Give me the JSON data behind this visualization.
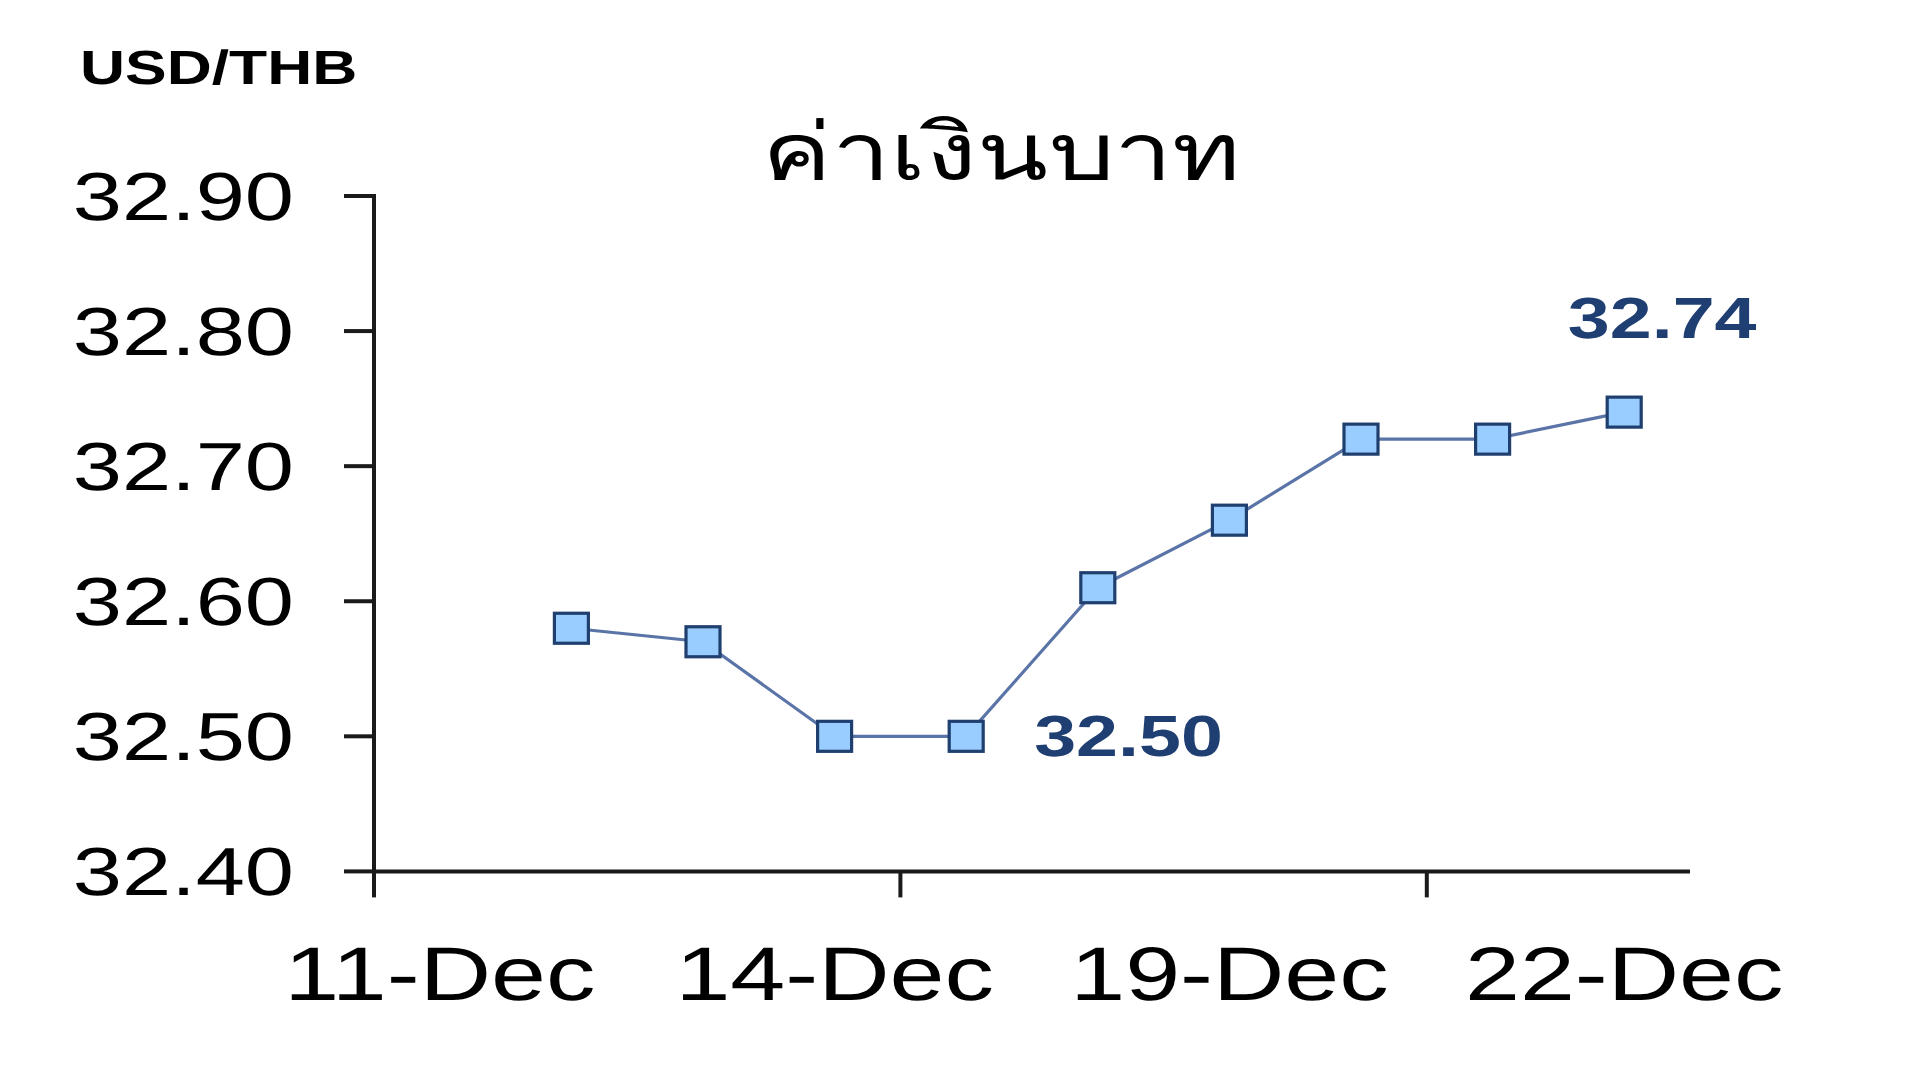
{
  "chart_data": {
    "type": "line",
    "title": "ค่าเงินบาท",
    "ylabel": "USD/THB",
    "categories": [
      "11-Dec",
      null,
      null,
      "14-Dec",
      null,
      null,
      "19-Dec",
      null,
      null,
      "22-Dec"
    ],
    "series": [
      {
        "color": "#5a74a8",
        "values": [
          null,
          32.58,
          32.57,
          32.5,
          32.5,
          32.61,
          32.66,
          32.72,
          32.72,
          32.74
        ],
        "value_labels": [
          null,
          null,
          null,
          null,
          "32.50",
          null,
          null,
          null,
          null,
          "32.74"
        ]
      }
    ],
    "ylim": [
      32.4,
      32.9
    ],
    "yticks": [
      {
        "value": 32.4,
        "label": "32.40"
      },
      {
        "value": 32.5,
        "label": "32.50"
      },
      {
        "value": 32.6,
        "label": "32.60"
      },
      {
        "value": 32.7,
        "label": "32.70"
      },
      {
        "value": 32.8,
        "label": "32.80"
      },
      {
        "value": 32.9,
        "label": "32.90"
      }
    ],
    "marker": "square"
  }
}
